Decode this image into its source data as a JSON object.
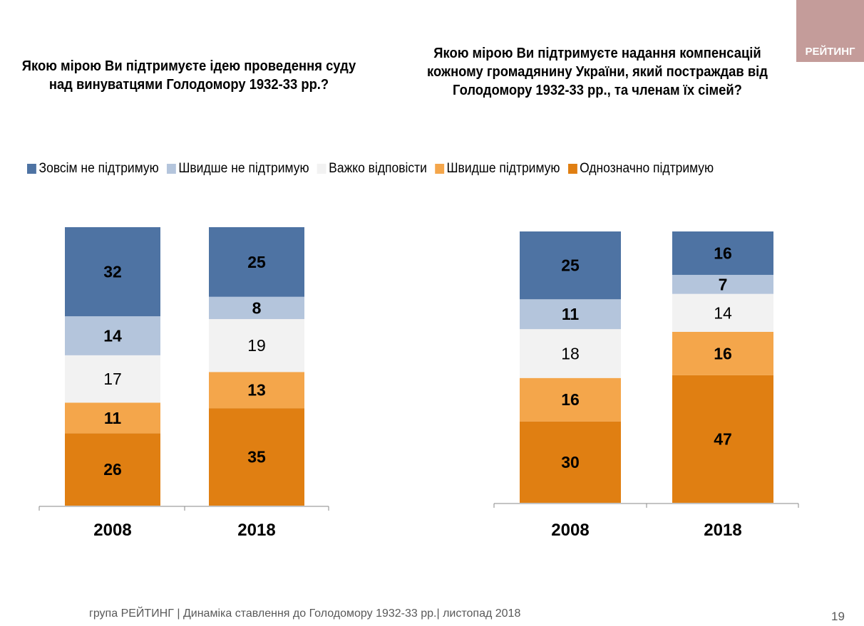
{
  "logo_text": "РЕЙТИНГ",
  "footer": "група РЕЙТИНГ  |  Динаміка ставлення до Голодомору 1932-33 рр.|  листопад  2018",
  "page_number": "19",
  "legend": [
    {
      "label": "Зовсім не підтримую",
      "color": "#4e73a3"
    },
    {
      "label": "Швидше не підтримую",
      "color": "#b4c5dc"
    },
    {
      "label": "Важко відповісти",
      "color": "#f2f2f2"
    },
    {
      "label": "Швидше підтримую",
      "color": "#f4a64b"
    },
    {
      "label": "Однозначно підтримую",
      "color": "#e07f12"
    }
  ],
  "chart_data": [
    {
      "type": "bar",
      "stacked": true,
      "title": "Якою мірою Ви підтримуєте ідею проведення суду над винуватцями Голодомору 1932-33 рр.?",
      "categories": [
        "2008",
        "2018"
      ],
      "series": [
        {
          "name": "Однозначно підтримую",
          "values": [
            26,
            35
          ]
        },
        {
          "name": "Швидше підтримую",
          "values": [
            11,
            13
          ]
        },
        {
          "name": "Важко відповісти",
          "values": [
            17,
            19
          ]
        },
        {
          "name": "Швидше не підтримую",
          "values": [
            14,
            8
          ]
        },
        {
          "name": "Зовсім не підтримую",
          "values": [
            32,
            25
          ]
        }
      ],
      "ylim": [
        0,
        100
      ]
    },
    {
      "type": "bar",
      "stacked": true,
      "title": "Якою мірою Ви підтримуєте надання компенсацій кожному громадянину України, який постраждав від Голодомору 1932-33 рр., та членам їх сімей?",
      "categories": [
        "2008",
        "2018"
      ],
      "series": [
        {
          "name": "Однозначно підтримую",
          "values": [
            30,
            47
          ]
        },
        {
          "name": "Швидше підтримую",
          "values": [
            16,
            16
          ]
        },
        {
          "name": "Важко відповісти",
          "values": [
            18,
            14
          ]
        },
        {
          "name": "Швидше не підтримую",
          "values": [
            11,
            7
          ]
        },
        {
          "name": "Зовсім не підтримую",
          "values": [
            25,
            16
          ]
        }
      ],
      "ylim": [
        0,
        100
      ]
    }
  ]
}
